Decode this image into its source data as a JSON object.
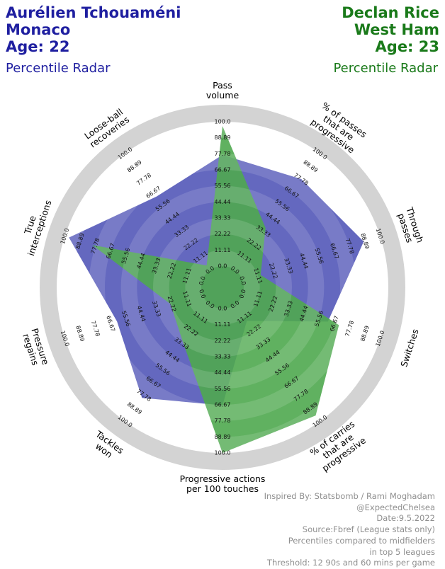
{
  "header": {
    "left": {
      "player": "Aurélien Tchouaméni",
      "team": "Monaco",
      "age": "Age: 22",
      "subtitle": "Percentile Radar",
      "color": "#1f1fa0"
    },
    "right": {
      "player": "Declan Rice",
      "team": "West Ham",
      "age": "Age: 23",
      "subtitle": "Percentile Radar",
      "color": "#1a7a1a"
    }
  },
  "chart_data": {
    "type": "radar",
    "axes": [
      [
        "Pass",
        "volume"
      ],
      [
        "% of passes",
        "that are",
        "progressive"
      ],
      [
        "Through",
        "passes"
      ],
      [
        "Switches"
      ],
      [
        "% of carries",
        "that are",
        "progressive"
      ],
      [
        "Progressive actions",
        "per 100 touches"
      ],
      [
        "Tackles",
        "won"
      ],
      [
        "Pressure",
        "regains"
      ],
      [
        "True",
        "interceptions"
      ],
      [
        "Loose-ball",
        "recoveries"
      ]
    ],
    "ticks": [
      "0.0",
      "11.11",
      "22.22",
      "33.33",
      "44.44",
      "55.56",
      "66.67",
      "77.78",
      "88.89",
      "100.0"
    ],
    "range": [
      0,
      100
    ],
    "series": [
      {
        "name": "Aurélien Tchouaméni",
        "color": "#5358b8",
        "values": [
          77,
          78,
          88,
          62,
          14,
          67,
          80,
          62,
          97,
          63
        ]
      },
      {
        "name": "Declan Rice",
        "color": "#4fa84f",
        "values": [
          97,
          36,
          13,
          70,
          95,
          100,
          32,
          23,
          80,
          4
        ]
      }
    ]
  },
  "credits": [
    "Inspired By: Statsbomb / Rami Moghadam",
    "@ExpectedChelsea",
    "Date:9.5.2022",
    "Source:Fbref (League stats only)",
    "Percentiles compared to midfielders",
    "in top 5 leagues",
    "Threshold: 12 90s and 60 mins per game"
  ]
}
